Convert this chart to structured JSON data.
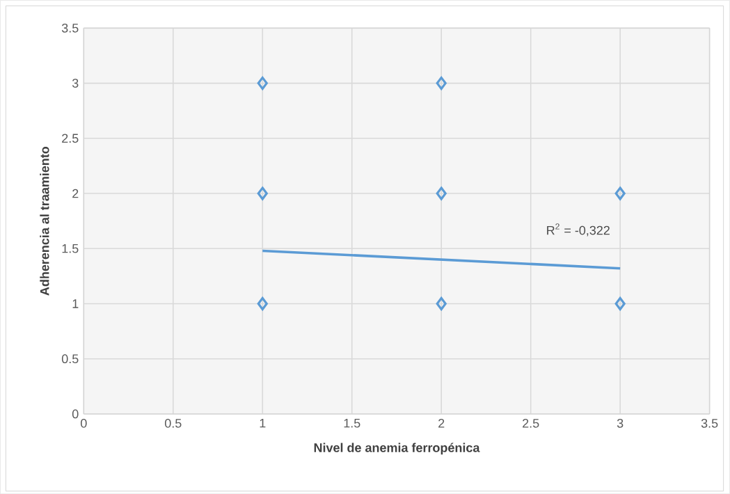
{
  "chart_data": {
    "type": "scatter",
    "xlabel": "Nivel de anemia ferropénica",
    "ylabel": "Adherencia al traamiento",
    "xlim": [
      0,
      3.5
    ],
    "xticks": [
      0,
      0.5,
      1,
      1.5,
      2,
      2.5,
      3,
      3.5
    ],
    "ylim": [
      0,
      3.5
    ],
    "yticks": [
      0,
      0.5,
      1,
      1.5,
      2,
      2.5,
      3,
      3.5
    ],
    "grid": true,
    "series": [
      {
        "marker": "diamond",
        "color": "#5b9bd5",
        "x": [
          1,
          2,
          1,
          2,
          3,
          1,
          2,
          3
        ],
        "values": [
          3,
          3,
          2,
          2,
          2,
          1,
          1,
          1
        ]
      },
      {
        "type": "line",
        "marker": "none",
        "line_style": "solid",
        "color": "#5b9bd5",
        "x": [
          1,
          3
        ],
        "values": [
          1.48,
          1.32
        ]
      }
    ],
    "annotations": [
      "R$^{2}$ = -0,322"
    ]
  }
}
